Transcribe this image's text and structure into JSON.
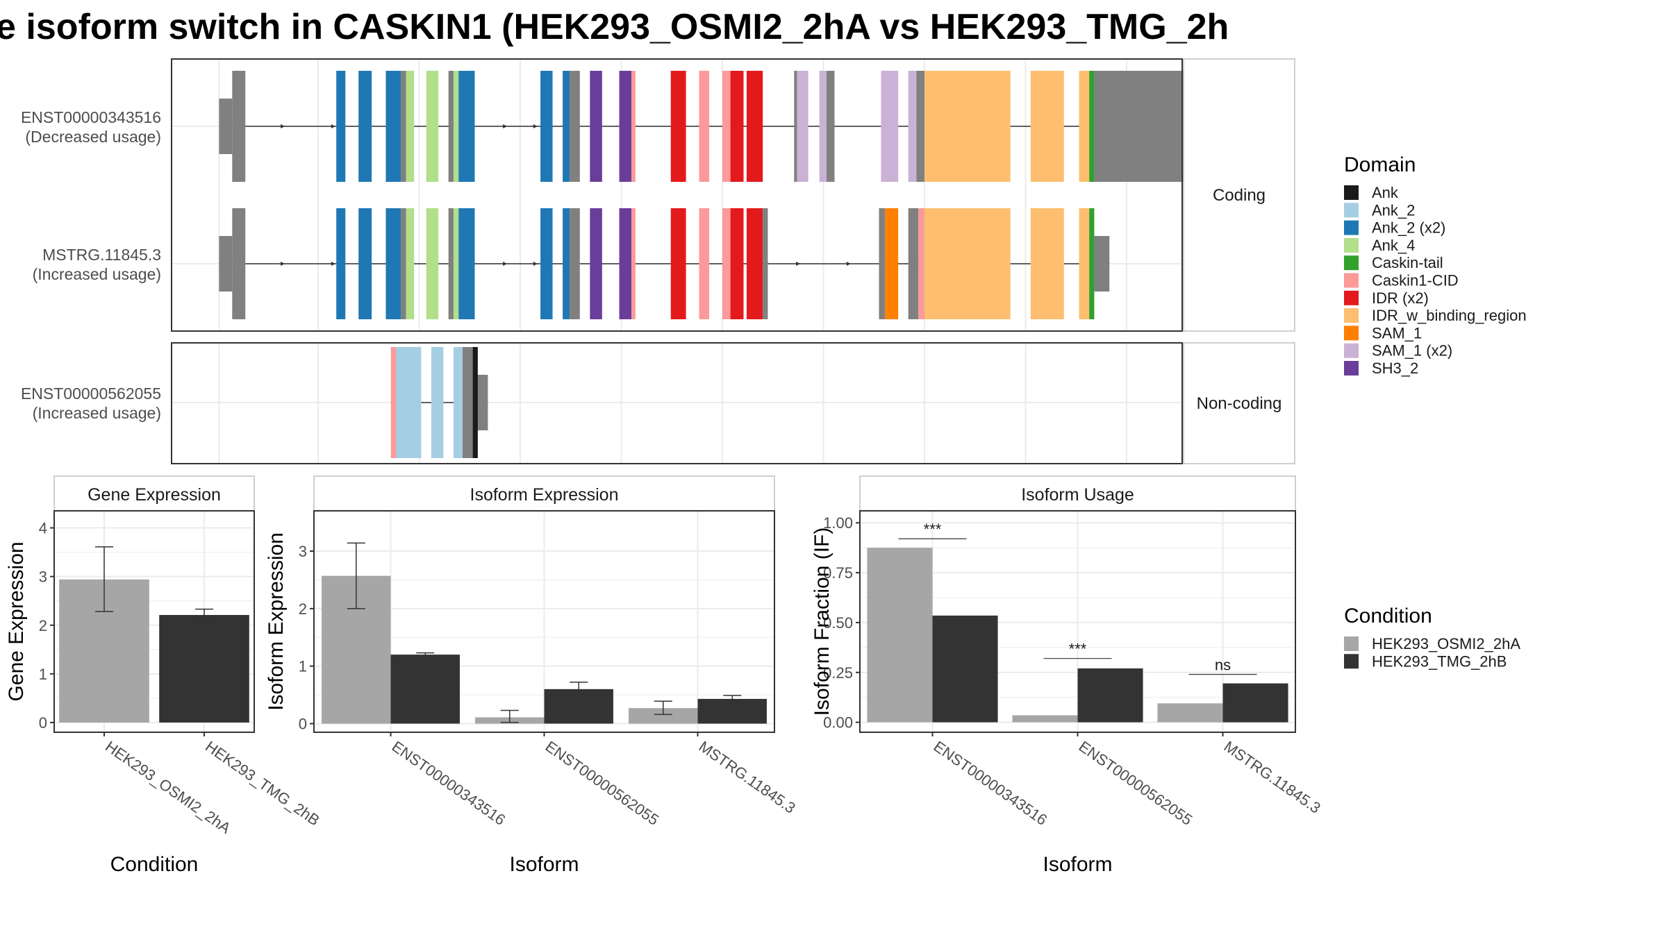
{
  "title": "e isoform switch in CASKIN1 (HEK293_OSMI2_2hA vs HEK293_TMG_2h",
  "colors": {
    "background": "#ffffff",
    "panel_border": "#333333",
    "strip_fill": "#ffffff",
    "strip_border": "#bfbfbf",
    "grid": "#ebebeb",
    "intron_line": "#333333",
    "exon_grey": "#808080",
    "bar_condition_a": "#a6a6a6",
    "bar_condition_b": "#333333"
  },
  "structure": {
    "x_domain": [
      0,
      1000
    ],
    "row_labels": {
      "coding": "Coding",
      "noncoding": "Non-coding"
    },
    "isoforms": [
      {
        "id": "ENST00000343516",
        "label": "(Decreased usage)",
        "panel": "coding",
        "utr5": [
          [
            47,
            60
          ]
        ],
        "tail3": [
          1020,
          1075
        ],
        "segments": [
          [
            60,
            73,
            "gray"
          ],
          [
            163,
            172,
            "Ank_2 (x2)"
          ],
          [
            185,
            198,
            "Ank_2 (x2)"
          ],
          [
            212,
            227,
            "Ank_2 (x2)"
          ],
          [
            227,
            232,
            "gray"
          ],
          [
            232,
            240,
            "Ank_4"
          ],
          [
            252,
            264,
            "Ank_4"
          ],
          [
            274,
            279,
            "gray"
          ],
          [
            279,
            284,
            "Ank_4"
          ],
          [
            284,
            300,
            "Ank_2 (x2)"
          ],
          [
            365,
            377,
            "Ank_2 (x2)"
          ],
          [
            387,
            394,
            "Ank_2 (x2)"
          ],
          [
            394,
            404,
            "gray"
          ],
          [
            414,
            426,
            "SH3_2"
          ],
          [
            443,
            455,
            "SH3_2"
          ],
          [
            455,
            459,
            "Caskin1-CID"
          ],
          [
            494,
            509,
            "IDR (x2)"
          ],
          [
            522,
            532,
            "Caskin1-CID"
          ],
          [
            545,
            553,
            "Caskin1-CID"
          ],
          [
            553,
            566,
            "IDR (x2)"
          ],
          [
            569,
            585,
            "IDR (x2)"
          ],
          [
            616,
            619,
            "gray"
          ],
          [
            619,
            630,
            "SAM_1 (x2)"
          ],
          [
            641,
            648,
            "SAM_1 (x2)"
          ],
          [
            648,
            656,
            "gray"
          ],
          [
            702,
            719,
            "SAM_1 (x2)"
          ],
          [
            729,
            737,
            "SAM_1 (x2)"
          ],
          [
            737,
            745,
            "gray"
          ],
          [
            745,
            830,
            "IDR_w_binding_region"
          ],
          [
            850,
            883,
            "IDR_w_binding_region"
          ],
          [
            898,
            908,
            "IDR_w_binding_region"
          ],
          [
            908,
            913,
            "Caskin-tail"
          ],
          [
            913,
            1020,
            "gray"
          ]
        ],
        "arrows": [
          110,
          160,
          330,
          360
        ]
      },
      {
        "id": "MSTRG.11845.3",
        "label": "(Increased usage)",
        "panel": "coding",
        "utr5": [
          [
            47,
            60
          ]
        ],
        "tail3": [
          913,
          928
        ],
        "segments": [
          [
            60,
            73,
            "gray"
          ],
          [
            163,
            172,
            "Ank_2 (x2)"
          ],
          [
            185,
            198,
            "Ank_2 (x2)"
          ],
          [
            212,
            227,
            "Ank_2 (x2)"
          ],
          [
            227,
            232,
            "gray"
          ],
          [
            232,
            240,
            "Ank_4"
          ],
          [
            252,
            264,
            "Ank_4"
          ],
          [
            274,
            279,
            "gray"
          ],
          [
            279,
            284,
            "Ank_4"
          ],
          [
            284,
            300,
            "Ank_2 (x2)"
          ],
          [
            365,
            377,
            "Ank_2 (x2)"
          ],
          [
            387,
            394,
            "Ank_2 (x2)"
          ],
          [
            394,
            404,
            "gray"
          ],
          [
            414,
            426,
            "SH3_2"
          ],
          [
            443,
            455,
            "SH3_2"
          ],
          [
            455,
            459,
            "Caskin1-CID"
          ],
          [
            494,
            509,
            "IDR (x2)"
          ],
          [
            522,
            532,
            "Caskin1-CID"
          ],
          [
            545,
            553,
            "Caskin1-CID"
          ],
          [
            553,
            566,
            "IDR (x2)"
          ],
          [
            569,
            585,
            "IDR (x2)"
          ],
          [
            585,
            590,
            "gray"
          ],
          [
            700,
            706,
            "gray"
          ],
          [
            706,
            719,
            "SAM_1"
          ],
          [
            729,
            739,
            "gray"
          ],
          [
            739,
            745,
            "Caskin1-CID"
          ],
          [
            745,
            830,
            "IDR_w_binding_region"
          ],
          [
            850,
            883,
            "IDR_w_binding_region"
          ],
          [
            898,
            908,
            "IDR_w_binding_region"
          ],
          [
            908,
            913,
            "Caskin-tail"
          ]
        ],
        "arrows": [
          110,
          160,
          330,
          360,
          620,
          670
        ]
      },
      {
        "id": "ENST00000562055",
        "label": "(Increased usage)",
        "panel": "noncoding",
        "utr5": [],
        "tail3": [
          300,
          313
        ],
        "segments": [
          [
            217,
            222,
            "Caskin1-CID"
          ],
          [
            222,
            247,
            "Ank_2"
          ],
          [
            257,
            269,
            "Ank_2"
          ],
          [
            279,
            288,
            "Ank_2"
          ],
          [
            288,
            298,
            "gray"
          ],
          [
            298,
            300,
            "Ank"
          ],
          [
            300,
            303,
            "Ank"
          ]
        ],
        "arrows": []
      }
    ]
  },
  "legends": {
    "domain": {
      "title": "Domain",
      "items": [
        {
          "label": "Ank",
          "color": "#1a1a1a"
        },
        {
          "label": "Ank_2",
          "color": "#a6cee3"
        },
        {
          "label": "Ank_2 (x2)",
          "color": "#1f78b4"
        },
        {
          "label": "Ank_4",
          "color": "#b2df8a"
        },
        {
          "label": "Caskin-tail",
          "color": "#33a02c"
        },
        {
          "label": "Caskin1-CID",
          "color": "#fb9a99"
        },
        {
          "label": "IDR (x2)",
          "color": "#e31a1c"
        },
        {
          "label": "IDR_w_binding_region",
          "color": "#fdbf6f"
        },
        {
          "label": "SAM_1",
          "color": "#ff7f00"
        },
        {
          "label": "SAM_1 (x2)",
          "color": "#cab2d6"
        },
        {
          "label": "SH3_2",
          "color": "#6a3d9a"
        }
      ]
    },
    "condition": {
      "title": "Condition",
      "items": [
        {
          "label": "HEK293_OSMI2_2hA",
          "color": "#a6a6a6"
        },
        {
          "label": "HEK293_TMG_2hB",
          "color": "#333333"
        }
      ]
    }
  },
  "chart_data": [
    {
      "type": "bar",
      "title": "Gene Expression",
      "xlabel": "Condition",
      "ylabel": "Gene Expression",
      "ylim": [
        -0.2,
        4.35
      ],
      "yticks": [
        0,
        1,
        2,
        3,
        4
      ],
      "ytick_labels": [
        "0",
        "1",
        "2",
        "3",
        "4"
      ],
      "categories": [
        "HEK293_OSMI2_2hA",
        "HEK293_TMG_2hB"
      ],
      "series": [
        {
          "condition": "HEK293_OSMI2_2hA",
          "values": [
            2.94,
            null
          ],
          "errors": [
            [
              2.28,
              3.61
            ],
            null
          ]
        },
        {
          "condition": "HEK293_TMG_2hB",
          "values": [
            null,
            2.21
          ],
          "errors": [
            null,
            [
              2.09,
              2.33
            ]
          ]
        }
      ],
      "significance": [],
      "grid": true
    },
    {
      "type": "bar",
      "title": "Isoform Expression",
      "xlabel": "Isoform",
      "ylabel": "Isoform Expression",
      "ylim": [
        -0.15,
        3.7
      ],
      "yticks": [
        0,
        1,
        2,
        3
      ],
      "ytick_labels": [
        "0",
        "1",
        "2",
        "3"
      ],
      "categories": [
        "ENST00000343516",
        "ENST00000562055",
        "MSTRG.11845.3"
      ],
      "series": [
        {
          "condition": "HEK293_OSMI2_2hA",
          "values": [
            2.57,
            0.11,
            0.27
          ],
          "errors": [
            [
              2.0,
              3.14
            ],
            [
              0.02,
              0.23
            ],
            [
              0.16,
              0.39
            ]
          ]
        },
        {
          "condition": "HEK293_TMG_2hB",
          "values": [
            1.2,
            0.6,
            0.43
          ],
          "errors": [
            [
              1.17,
              1.23
            ],
            [
              0.5,
              0.72
            ],
            [
              0.37,
              0.49
            ]
          ]
        }
      ],
      "significance": [],
      "grid": true
    },
    {
      "type": "bar",
      "title": "Isoform Usage",
      "xlabel": "Isoform",
      "ylabel": "Isoform Fraction (IF)",
      "ylim": [
        -0.05,
        1.06
      ],
      "yticks": [
        0,
        0.25,
        0.5,
        0.75,
        1.0
      ],
      "ytick_labels": [
        "0.00",
        "0.25",
        "0.50",
        "0.75",
        "1.00"
      ],
      "categories": [
        "ENST00000343516",
        "ENST00000562055",
        "MSTRG.11845.3"
      ],
      "series": [
        {
          "condition": "HEK293_OSMI2_2hA",
          "values": [
            0.875,
            0.035,
            0.095
          ],
          "errors": [
            null,
            null,
            null
          ]
        },
        {
          "condition": "HEK293_TMG_2hB",
          "values": [
            0.535,
            0.27,
            0.195
          ],
          "errors": [
            null,
            null,
            null
          ]
        }
      ],
      "significance": [
        {
          "category": "ENST00000343516",
          "label": "***",
          "y": 0.92
        },
        {
          "category": "ENST00000562055",
          "label": "***",
          "y": 0.32
        },
        {
          "category": "MSTRG.11845.3",
          "label": "ns",
          "y": 0.24
        }
      ],
      "grid": true
    }
  ]
}
